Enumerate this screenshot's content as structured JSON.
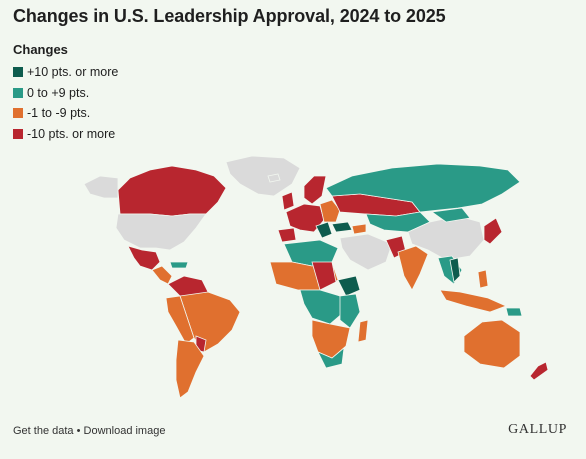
{
  "title": "Changes in U.S. Leadership Approval, 2024 to 2025",
  "legend": {
    "title": "Changes",
    "items": [
      {
        "label": "+10 pts. or more",
        "color": "#0e5c4e"
      },
      {
        "label": "0 to +9 pts.",
        "color": "#2a9a87"
      },
      {
        "label": "-1 to -9 pts.",
        "color": "#e0702f"
      },
      {
        "label": "-10 pts. or more",
        "color": "#b8262f"
      }
    ]
  },
  "colors": {
    "no_data": "#dadada",
    "background": "#f2f7f0"
  },
  "footer": {
    "get_data": "Get the data",
    "separator": " • ",
    "download": "Download image",
    "logo": "GALLUP"
  }
}
